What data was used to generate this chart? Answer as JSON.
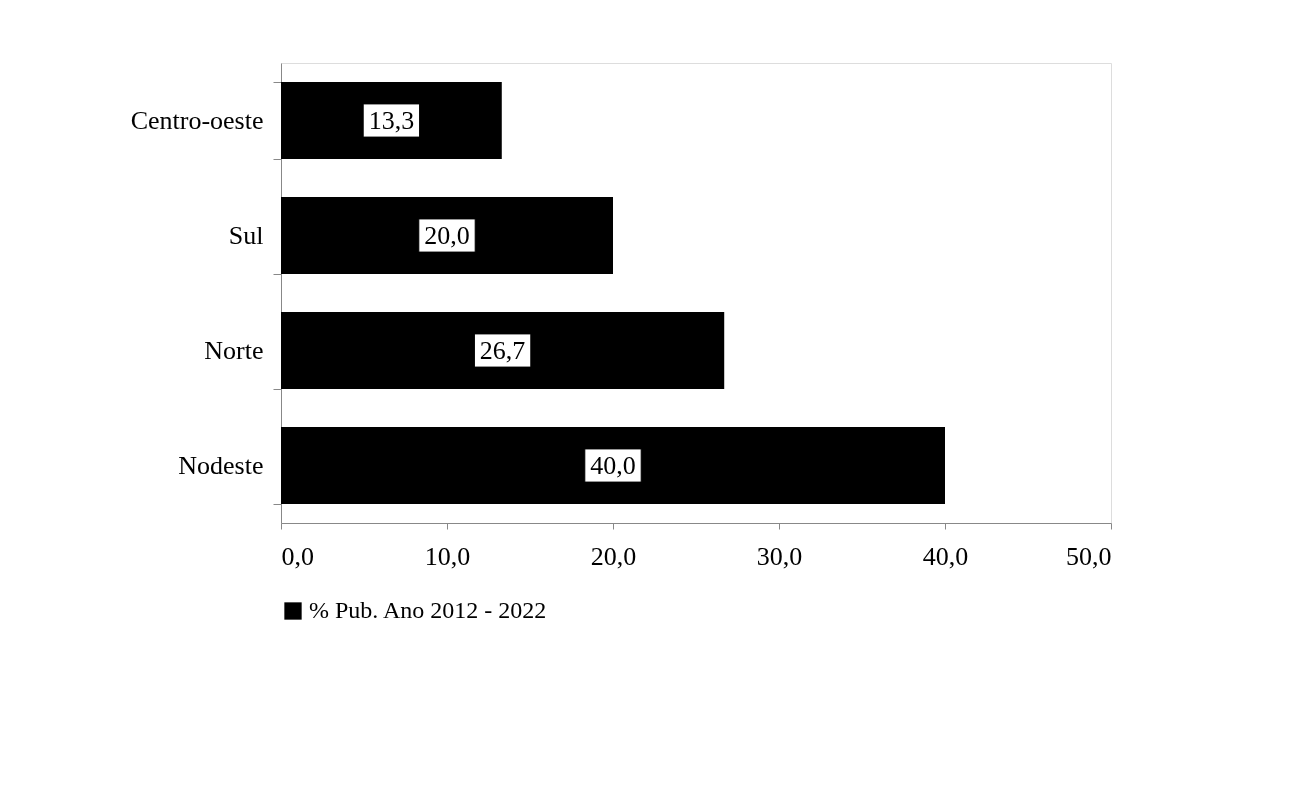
{
  "chart_data": {
    "type": "bar",
    "orientation": "horizontal",
    "categories": [
      "Centro-oeste",
      "Sul",
      "Norte",
      "Nodeste"
    ],
    "series": [
      {
        "name": "% Pub. Ano 2012 - 2022",
        "color": "#000000",
        "values": [
          13.3,
          20.0,
          26.7,
          40.0
        ],
        "value_labels": [
          "13,3",
          "20,0",
          "26,7",
          "40,0"
        ]
      }
    ],
    "xlim": [
      0,
      50
    ],
    "xticks": [
      {
        "value": 0,
        "label": "0,0"
      },
      {
        "value": 10,
        "label": "10,0"
      },
      {
        "value": 20,
        "label": "20,0"
      },
      {
        "value": 30,
        "label": "30,0"
      },
      {
        "value": 40,
        "label": "40,0"
      },
      {
        "value": 50,
        "label": "50,0"
      }
    ],
    "grid": false,
    "legend": "bottom"
  }
}
